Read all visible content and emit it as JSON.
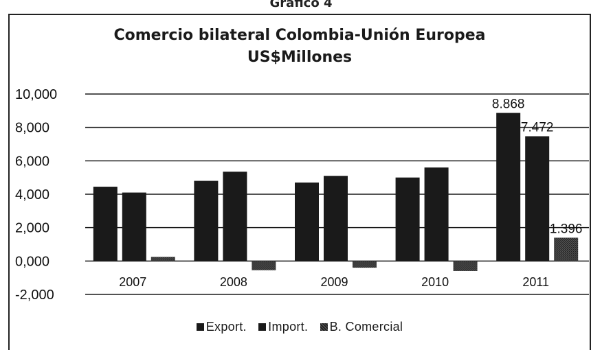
{
  "caption": "Gráfico 4",
  "chart_data": {
    "type": "bar",
    "title": "Comercio bilateral Colombia-Unión Europea",
    "subtitle": "US$Millones",
    "categories": [
      "2007",
      "2008",
      "2009",
      "2010",
      "2011"
    ],
    "series": [
      {
        "name": "Export.",
        "values": [
          4450,
          4800,
          4700,
          5000,
          8868
        ],
        "color": "#1a1a1a"
      },
      {
        "name": "Import.",
        "values": [
          4100,
          5350,
          5100,
          5600,
          7472
        ],
        "color": "#1a1a1a"
      },
      {
        "name": "B. Comercial",
        "values": [
          250,
          -550,
          -400,
          -600,
          1396
        ],
        "color": "#3a3a3a"
      }
    ],
    "data_labels": [
      {
        "series": 0,
        "index": 4,
        "text": "8.868"
      },
      {
        "series": 1,
        "index": 4,
        "text": "7.472"
      },
      {
        "series": 2,
        "index": 4,
        "text": "1.396"
      }
    ],
    "y_ticks": [
      "10,000",
      "8,000",
      "6,000",
      "4,000",
      "2,000",
      "0,000",
      "-2,000"
    ],
    "y_tick_values": [
      10000,
      8000,
      6000,
      4000,
      2000,
      0,
      -2000
    ],
    "ylim": [
      -2000,
      10000
    ],
    "grid": true,
    "legend_position": "bottom"
  }
}
